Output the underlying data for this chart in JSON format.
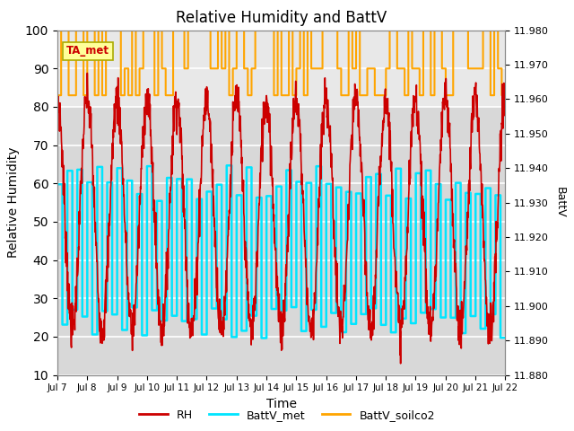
{
  "title": "Relative Humidity and BattV",
  "xlabel": "Time",
  "ylabel_left": "Relative Humidity",
  "ylabel_right": "BattV",
  "ylim_left": [
    10,
    100
  ],
  "ylim_right": [
    11.88,
    11.98
  ],
  "yticks_left": [
    10,
    20,
    30,
    40,
    50,
    60,
    70,
    80,
    90,
    100
  ],
  "yticks_right": [
    11.88,
    11.89,
    11.9,
    11.91,
    11.92,
    11.93,
    11.94,
    11.95,
    11.96,
    11.97,
    11.98
  ],
  "xticklabels": [
    "Jul 7",
    "Jul 8",
    "Jul 9",
    "Jul 10",
    "Jul 11",
    "Jul 12",
    "Jul 13",
    "Jul 14",
    "Jul 15",
    "Jul 16",
    "Jul 17",
    "Jul 18",
    "Jul 19",
    "Jul 20",
    "Jul 21",
    "Jul 22"
  ],
  "color_rh": "#cc0000",
  "color_battv_met": "#00e5ff",
  "color_battv_soilco2": "#ffa500",
  "annotation_text": "TA_met",
  "annotation_color": "#cc0000",
  "annotation_bg": "#ffff99",
  "annotation_edge": "#aaaa00",
  "bg_color_lower": "#d8d8d8",
  "bg_color_upper": "#e8e8e8",
  "grid_color": "#ffffff",
  "legend_labels": [
    "RH",
    "BattV_met",
    "BattV_soilco2"
  ],
  "n_days": 15,
  "pts_per_day": 96
}
